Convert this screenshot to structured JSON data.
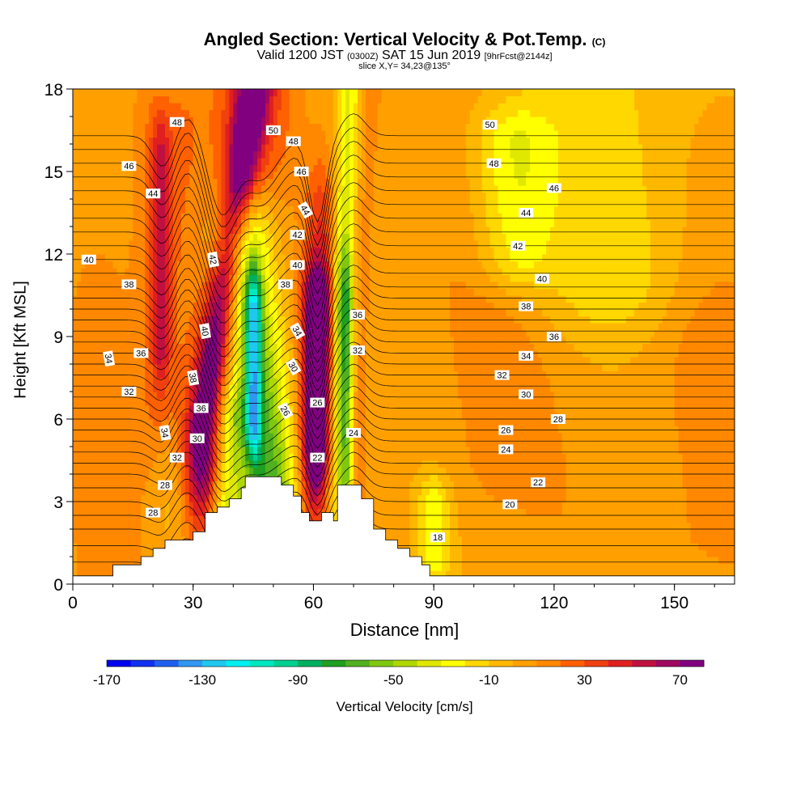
{
  "title": {
    "main": "Angled Section: Vertical Velocity & Pot.Temp.",
    "copyright": "(C)",
    "valid_prefix": "Valid 1200 JST",
    "valid_utc": "(0300Z)",
    "valid_date": "SAT 15 Jun 2019",
    "forecast": "[9hrFcst@2144z]",
    "slice": "slice X,Y= 34,23@135°"
  },
  "chart_data": {
    "type": "heatmap",
    "xlabel": "Distance [nm]",
    "ylabel": "Height [Kft MSL]",
    "xlim": [
      0,
      165
    ],
    "ylim": [
      0,
      18
    ],
    "x_ticks": [
      0,
      30,
      60,
      90,
      120,
      150
    ],
    "y_ticks": [
      0,
      3,
      6,
      9,
      12,
      15,
      18
    ],
    "colorbar": {
      "label": "Vertical Velocity [cm/s]",
      "tick_labels": [
        "-170",
        "-130",
        "-90",
        "-50",
        "-10",
        "30",
        "70"
      ],
      "tick_values": [
        -170,
        -130,
        -90,
        -50,
        -10,
        30,
        70
      ],
      "range": [
        -170,
        80
      ],
      "step": 10,
      "colors": [
        "#0000ee",
        "#1030f0",
        "#2060f0",
        "#3098f0",
        "#20c8f0",
        "#00f0f0",
        "#00e8c0",
        "#00d090",
        "#00b060",
        "#20a020",
        "#50b020",
        "#80c810",
        "#b0d800",
        "#e0e800",
        "#ffff00",
        "#ffd800",
        "#ffb800",
        "#ffa000",
        "#ff8800",
        "#ff6000",
        "#f04010",
        "#e02020",
        "#c01040",
        "#a00860",
        "#800080"
      ]
    },
    "terrain_profile": [
      [
        0,
        0.3
      ],
      [
        10,
        0.3
      ],
      [
        10,
        0.7
      ],
      [
        17,
        0.7
      ],
      [
        17,
        1.0
      ],
      [
        20,
        1.0
      ],
      [
        20,
        1.3
      ],
      [
        23,
        1.3
      ],
      [
        23,
        1.6
      ],
      [
        30,
        1.6
      ],
      [
        30,
        1.9
      ],
      [
        33,
        1.9
      ],
      [
        33,
        2.6
      ],
      [
        36,
        2.6
      ],
      [
        36,
        2.8
      ],
      [
        39,
        2.8
      ],
      [
        39,
        3.1
      ],
      [
        42,
        3.1
      ],
      [
        42,
        3.5
      ],
      [
        43,
        3.5
      ],
      [
        43,
        3.9
      ],
      [
        52,
        3.9
      ],
      [
        52,
        3.6
      ],
      [
        55,
        3.6
      ],
      [
        55,
        3.2
      ],
      [
        57,
        3.2
      ],
      [
        57,
        2.6
      ],
      [
        59,
        2.6
      ],
      [
        59,
        2.3
      ],
      [
        62,
        2.3
      ],
      [
        62,
        2.6
      ],
      [
        65,
        2.6
      ],
      [
        65,
        2.3
      ],
      [
        66,
        2.3
      ],
      [
        66,
        3.6
      ],
      [
        72,
        3.6
      ],
      [
        72,
        3.1
      ],
      [
        75,
        3.1
      ],
      [
        75,
        2.0
      ],
      [
        78,
        2.0
      ],
      [
        78,
        1.6
      ],
      [
        81,
        1.6
      ],
      [
        81,
        1.3
      ],
      [
        84,
        1.3
      ],
      [
        84,
        1.0
      ],
      [
        87,
        1.0
      ],
      [
        87,
        0.7
      ],
      [
        89,
        0.7
      ],
      [
        89,
        0.3
      ],
      [
        165,
        0.3
      ]
    ],
    "updrafts": [
      {
        "x0": 40,
        "x1": 46,
        "y0": 5.3,
        "y1": 18,
        "w": 10,
        "v": 35
      },
      {
        "x0": 23,
        "x1": 23,
        "y0": 7,
        "y1": 16,
        "w": 7,
        "v": 25
      },
      {
        "x0": 32,
        "x1": 45,
        "y0": 5.5,
        "y1": 18,
        "w": 4,
        "v": 70
      },
      {
        "x0": 61,
        "x1": 61,
        "y0": 5,
        "y1": 10,
        "w": 3.8,
        "v": 70
      },
      {
        "x0": 60,
        "x1": 62,
        "y0": 3.3,
        "y1": 13,
        "w": 4,
        "v": 35
      },
      {
        "x0": 22,
        "x1": 22,
        "y0": 9,
        "y1": 15,
        "w": 2.5,
        "v": 40
      },
      {
        "x0": 105,
        "x1": 105,
        "y0": 4.5,
        "y1": 11,
        "w": 14,
        "v": 8
      },
      {
        "x0": 160,
        "x1": 160,
        "y0": 2,
        "y1": 9,
        "w": 18,
        "v": 10
      },
      {
        "x0": 8,
        "x1": 8,
        "y0": 0.5,
        "y1": 11,
        "w": 8,
        "v": 8
      },
      {
        "x0": 70,
        "x1": 74,
        "y0": 0.5,
        "y1": 18,
        "w": 2.5,
        "v": 12
      }
    ],
    "downdrafts": [
      {
        "x0": 48,
        "x1": 43,
        "y0": 3.5,
        "y1": 12,
        "w": 8,
        "v": -90
      },
      {
        "x0": 45,
        "x1": 45,
        "y0": 6,
        "y1": 10,
        "w": 2,
        "v": -80
      },
      {
        "x0": 68,
        "x1": 68,
        "y0": 3,
        "y1": 10,
        "w": 2,
        "v": -60
      },
      {
        "x0": 65,
        "x1": 69,
        "y0": 5,
        "y1": 18,
        "w": 3,
        "v": -35
      },
      {
        "x0": 38,
        "x1": 40,
        "y0": 2.5,
        "y1": 6,
        "w": 4,
        "v": -40
      },
      {
        "x0": 24,
        "x1": 23,
        "y0": 4,
        "y1": 18,
        "w": 4,
        "v": -10
      },
      {
        "x0": 135,
        "x1": 135,
        "y0": 11,
        "y1": 18,
        "w": 20,
        "v": -20
      },
      {
        "x0": 110,
        "x1": 110,
        "y0": 12,
        "y1": 16,
        "w": 10,
        "v": -30
      },
      {
        "x0": 90,
        "x1": 90,
        "y0": 1,
        "y1": 3,
        "w": 4,
        "v": -30
      }
    ],
    "isentropes": {
      "levels": [
        17,
        18,
        19,
        20,
        21,
        22,
        23,
        24,
        25,
        26,
        27,
        28,
        29,
        30,
        31,
        32,
        33,
        34,
        35,
        36,
        37,
        38,
        39,
        40,
        41,
        42,
        43,
        44,
        45,
        46,
        47,
        48,
        49,
        50,
        51
      ],
      "right_heights": [
        0.8,
        1.4,
        2.0,
        2.5,
        3.0,
        3.5,
        4.0,
        4.4,
        4.8,
        5.2,
        5.6,
        6.0,
        6.4,
        6.8,
        7.2,
        7.6,
        8.0,
        8.4,
        8.8,
        9.2,
        9.6,
        10.0,
        10.4,
        10.8,
        11.3,
        11.8,
        12.3,
        12.8,
        13.3,
        13.8,
        14.3,
        14.8,
        15.3,
        15.8,
        16.3
      ],
      "dips": [
        {
          "x": 37,
          "w": 5,
          "amp": 2.2
        },
        {
          "x": 47,
          "w": 6,
          "amp": 1.2
        },
        {
          "x": 61,
          "w": 3,
          "amp": 2.4
        },
        {
          "x": 23,
          "w": 4,
          "amp": 1.2
        }
      ],
      "bumps": [
        {
          "x": 28,
          "w": 6,
          "amp": 1.0
        },
        {
          "x": 70,
          "w": 4,
          "amp": 0.8
        }
      ],
      "labels": [
        {
          "text": "48",
          "x": 26,
          "y": 16.8
        },
        {
          "text": "46",
          "x": 14,
          "y": 15.2
        },
        {
          "text": "44",
          "x": 20,
          "y": 14.2
        },
        {
          "text": "40",
          "x": 4,
          "y": 11.8
        },
        {
          "text": "38",
          "x": 14,
          "y": 10.9
        },
        {
          "text": "36",
          "x": 17,
          "y": 8.4
        },
        {
          "text": "34",
          "x": 9,
          "y": 8.2,
          "rot": 80
        },
        {
          "text": "32",
          "x": 14,
          "y": 7.0
        },
        {
          "text": "34",
          "x": 23,
          "y": 5.5,
          "rot": 80
        },
        {
          "text": "32",
          "x": 26,
          "y": 4.6
        },
        {
          "text": "28",
          "x": 23,
          "y": 3.6
        },
        {
          "text": "28",
          "x": 20,
          "y": 2.6
        },
        {
          "text": "42",
          "x": 35,
          "y": 11.8,
          "rot": 80
        },
        {
          "text": "40",
          "x": 33,
          "y": 9.2,
          "rot": 80
        },
        {
          "text": "38",
          "x": 30,
          "y": 7.5,
          "rot": 80
        },
        {
          "text": "36",
          "x": 32,
          "y": 6.4
        },
        {
          "text": "30",
          "x": 31,
          "y": 5.3
        },
        {
          "text": "50",
          "x": 50,
          "y": 16.5
        },
        {
          "text": "48",
          "x": 55,
          "y": 16.1
        },
        {
          "text": "46",
          "x": 57,
          "y": 15.0
        },
        {
          "text": "44",
          "x": 58,
          "y": 13.6,
          "rot": 60
        },
        {
          "text": "42",
          "x": 56,
          "y": 12.7
        },
        {
          "text": "40",
          "x": 56,
          "y": 11.6
        },
        {
          "text": "38",
          "x": 53,
          "y": 10.9
        },
        {
          "text": "34",
          "x": 56,
          "y": 9.2,
          "rot": 60
        },
        {
          "text": "30",
          "x": 55,
          "y": 7.9,
          "rot": 60
        },
        {
          "text": "26",
          "x": 53,
          "y": 6.3,
          "rot": 60
        },
        {
          "text": "26",
          "x": 61,
          "y": 6.6
        },
        {
          "text": "22",
          "x": 61,
          "y": 4.6
        },
        {
          "text": "36",
          "x": 71,
          "y": 9.8
        },
        {
          "text": "32",
          "x": 71,
          "y": 8.5
        },
        {
          "text": "24",
          "x": 70,
          "y": 5.5
        },
        {
          "text": "50",
          "x": 104,
          "y": 16.7
        },
        {
          "text": "48",
          "x": 105,
          "y": 15.3
        },
        {
          "text": "46",
          "x": 120,
          "y": 14.4
        },
        {
          "text": "44",
          "x": 113,
          "y": 13.5
        },
        {
          "text": "42",
          "x": 111,
          "y": 12.3
        },
        {
          "text": "40",
          "x": 117,
          "y": 11.1
        },
        {
          "text": "38",
          "x": 113,
          "y": 10.1
        },
        {
          "text": "36",
          "x": 120,
          "y": 9.0
        },
        {
          "text": "34",
          "x": 113,
          "y": 8.3
        },
        {
          "text": "32",
          "x": 107,
          "y": 7.6
        },
        {
          "text": "30",
          "x": 113,
          "y": 6.9
        },
        {
          "text": "28",
          "x": 121,
          "y": 6.0
        },
        {
          "text": "26",
          "x": 108,
          "y": 5.6
        },
        {
          "text": "24",
          "x": 108,
          "y": 4.9
        },
        {
          "text": "22",
          "x": 116,
          "y": 3.7
        },
        {
          "text": "20",
          "x": 109,
          "y": 2.9
        },
        {
          "text": "18",
          "x": 91,
          "y": 1.7
        }
      ]
    }
  }
}
